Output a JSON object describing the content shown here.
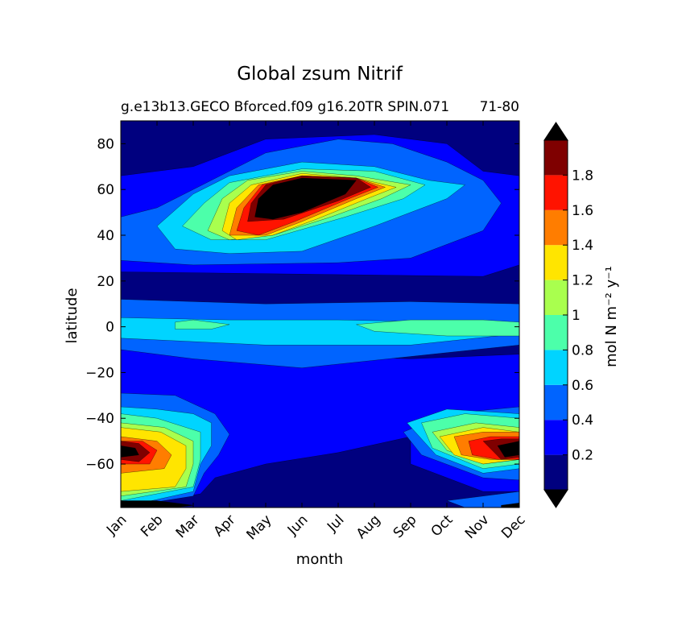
{
  "chart_data": {
    "type": "contourf",
    "title": "Global zsum Nitrif",
    "subtitle_left": "g.e13b13.GECO Bforced.f09 g16.20TR SPIN.071",
    "subtitle_right": "71-80",
    "xlabel": "month",
    "ylabel": "latitude",
    "x_ticks": [
      "Jan",
      "Feb",
      "Mar",
      "Apr",
      "May",
      "Jun",
      "Jul",
      "Aug",
      "Sep",
      "Oct",
      "Nov",
      "Dec"
    ],
    "y_ticks": [
      80,
      60,
      40,
      20,
      0,
      -20,
      -40,
      -60
    ],
    "ylim": [
      -79,
      90
    ],
    "colorbar": {
      "label": "mol N m⁻² y⁻¹",
      "ticks": [
        "0.2",
        "0.4",
        "0.6",
        "0.8",
        "1",
        "1.2",
        "1.4",
        "1.6",
        "1.8"
      ],
      "levels": [
        0,
        0.2,
        0.4,
        0.6,
        0.8,
        1.0,
        1.2,
        1.4,
        1.6,
        1.8,
        2.0
      ],
      "colors": [
        "#00007f",
        "#0000ff",
        "#0064ff",
        "#00d4ff",
        "#4cffaa",
        "#a9ff4e",
        "#ffe500",
        "#ff7d00",
        "#ff1300",
        "#7f0000"
      ],
      "extend_low_color": "#000000",
      "extend_high_color": "#000000"
    },
    "contour_regions": [
      {
        "level": 0.2,
        "color": "#0000ff"
      },
      {
        "level": 0.4,
        "color": "#0064ff"
      },
      {
        "level": 0.6,
        "color": "#00d4ff"
      },
      {
        "level": 0.8,
        "color": "#4cffaa"
      },
      {
        "level": 1.0,
        "color": "#a9ff4e"
      },
      {
        "level": 1.2,
        "color": "#ffe500"
      },
      {
        "level": 1.4,
        "color": "#ff7d00"
      },
      {
        "level": 1.6,
        "color": "#ff1300"
      },
      {
        "level": 1.8,
        "color": "#7f0000"
      },
      {
        "level": 2.0,
        "color": "#000000"
      }
    ]
  }
}
